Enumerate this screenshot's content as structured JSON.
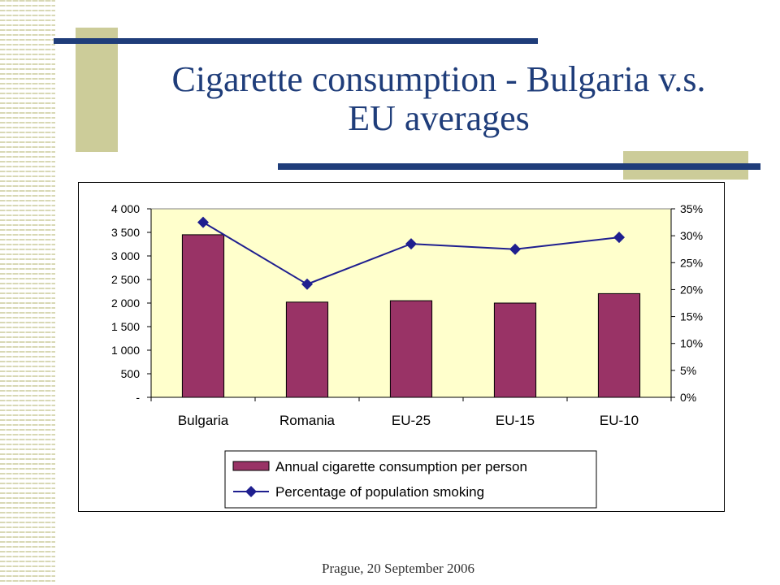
{
  "slide": {
    "title_line1": "Cigarette consumption - Bulgaria v.s.",
    "title_line2": "EU averages",
    "footer": "Prague, 20 September 2006",
    "accent_navy": "#1f3d7a",
    "accent_khaki": "#cccc99"
  },
  "chart_data": {
    "type": "bar",
    "categories": [
      "Bulgaria",
      "Romania",
      "EU-25",
      "EU-15",
      "EU-10"
    ],
    "series": [
      {
        "name": "Annual cigarette consumption per person",
        "type": "bar",
        "axis": "left",
        "color": "#993366",
        "values": [
          3450,
          2020,
          2050,
          2000,
          2200
        ]
      },
      {
        "name": "Percentage of population smoking",
        "type": "line",
        "axis": "right",
        "color": "#1f1f8f",
        "marker": "diamond",
        "values": [
          0.325,
          0.21,
          0.285,
          0.275,
          0.297
        ]
      }
    ],
    "y_left": {
      "min": 0,
      "max": 4000,
      "step": 500,
      "tick_labels": [
        "-",
        "500",
        "1 000",
        "1 500",
        "2 000",
        "2 500",
        "3 000",
        "3 500",
        "4 000"
      ]
    },
    "y_right": {
      "min": 0,
      "max": 0.35,
      "step": 0.05,
      "tick_labels": [
        "0%",
        "5%",
        "10%",
        "15%",
        "20%",
        "25%",
        "30%",
        "35%"
      ]
    },
    "plot_background": "#ffffcc",
    "grid": false,
    "legend_position": "bottom"
  }
}
